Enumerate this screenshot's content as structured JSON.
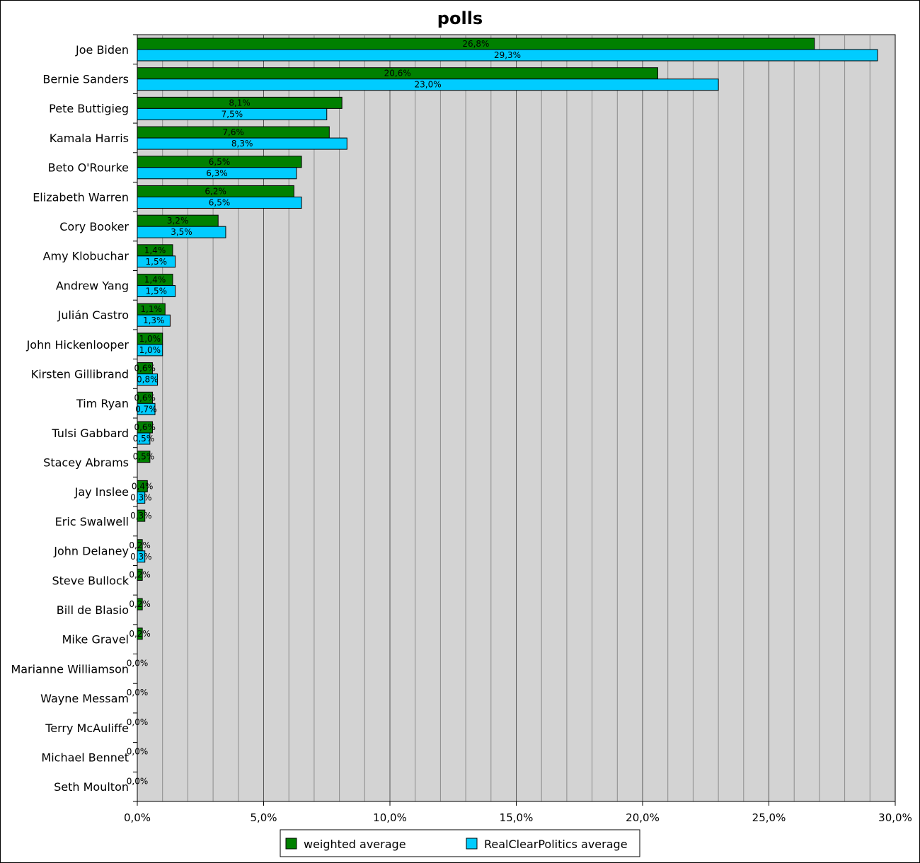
{
  "chart_data": {
    "type": "bar",
    "orientation": "horizontal",
    "title": "polls",
    "xlabel": "",
    "ylabel": "",
    "xlim": [
      0,
      30
    ],
    "major_step": 5,
    "minor_step": 1,
    "grid": true,
    "legend_position": "bottom",
    "x_tick_labels": [
      "0,0%",
      "5,0%",
      "10,0%",
      "15,0%",
      "20,0%",
      "25,0%",
      "30,0%"
    ],
    "categories": [
      "Joe Biden",
      "Bernie Sanders",
      "Pete Buttigieg",
      "Kamala Harris",
      "Beto O'Rourke",
      "Elizabeth Warren",
      "Cory Booker",
      "Amy Klobuchar",
      "Andrew Yang",
      "Julián Castro",
      "John Hickenlooper",
      "Kirsten Gillibrand",
      "Tim Ryan",
      "Tulsi Gabbard",
      "Stacey Abrams",
      "Jay Inslee",
      "Eric Swalwell",
      "John Delaney",
      "Steve Bullock",
      "Bill de Blasio",
      "Mike Gravel",
      "Marianne Williamson",
      "Wayne Messam",
      "Terry McAuliffe",
      "Michael Bennet",
      "Seth Moulton"
    ],
    "series": [
      {
        "name": "weighted average",
        "color": "#008000",
        "values": [
          26.8,
          20.6,
          8.1,
          7.6,
          6.5,
          6.2,
          3.2,
          1.4,
          1.4,
          1.1,
          1.0,
          0.6,
          0.6,
          0.6,
          0.5,
          0.4,
          0.3,
          0.2,
          0.2,
          0.2,
          0.2,
          0.0,
          0.0,
          0.0,
          0.0,
          0.0
        ],
        "labels": [
          "26,8%",
          "20,6%",
          "8,1%",
          "7,6%",
          "6,5%",
          "6,2%",
          "3,2%",
          "1,4%",
          "1,4%",
          "1,1%",
          "1,0%",
          "0,6%",
          "0,6%",
          "0,6%",
          "0,5%",
          "0,4%",
          "0,3%",
          "0,2%",
          "0,2%",
          "0,2%",
          "0,2%",
          "0,0%",
          "0,0%",
          "0,0%",
          "0,0%",
          "0,0%"
        ]
      },
      {
        "name": "RealClearPolitics average",
        "color": "#00ccff",
        "values": [
          29.3,
          23.0,
          7.5,
          8.3,
          6.3,
          6.5,
          3.5,
          1.5,
          1.5,
          1.3,
          1.0,
          0.8,
          0.7,
          0.5,
          null,
          0.3,
          null,
          0.3,
          null,
          null,
          null,
          null,
          null,
          null,
          null,
          null
        ],
        "labels": [
          "29,3%",
          "23,0%",
          "7,5%",
          "8,3%",
          "6,3%",
          "6,5%",
          "3,5%",
          "1,5%",
          "1,5%",
          "1,3%",
          "1,0%",
          "0,8%",
          "0,7%",
          "0,5%",
          null,
          "0,3%",
          null,
          "0,3%",
          null,
          null,
          null,
          null,
          null,
          null,
          null,
          null
        ]
      }
    ]
  }
}
